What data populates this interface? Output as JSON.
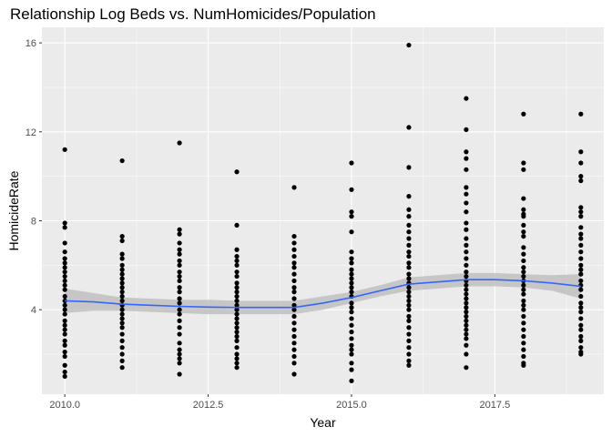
{
  "chart_data": {
    "type": "scatter",
    "title": "Relationship Log Beds vs. NumHomicides/Population",
    "xlabel": "Year",
    "ylabel": "HomicideRate",
    "xlim": [
      2009.6,
      2019.4
    ],
    "ylim": [
      0.2,
      16.7
    ],
    "x_ticks": [
      2010.0,
      2012.5,
      2015.0,
      2017.5
    ],
    "x_tick_labels": [
      "2010.0",
      "2012.5",
      "2015.0",
      "2017.5"
    ],
    "y_ticks": [
      4,
      8,
      12,
      16
    ],
    "y_tick_labels": [
      "4",
      "8",
      "12",
      "16"
    ],
    "grid": true,
    "legend": "none",
    "colors": {
      "panel": "#ebebeb",
      "grid_major": "#ffffff",
      "points": "#000000",
      "smooth_line": "#3366ff",
      "confidence_band": "#bdbdbd"
    },
    "series": [
      {
        "type": "scatter",
        "points_by_year": [
          {
            "x": 2010,
            "y": [
              11.2,
              7.9,
              7.7,
              7.0,
              6.6,
              6.3,
              6.1,
              5.9,
              5.7,
              5.5,
              5.3,
              5.1,
              4.9,
              4.6,
              4.4,
              4.2,
              4.0,
              3.8,
              3.5,
              3.3,
              3.1,
              2.9,
              2.6,
              2.4,
              2.1,
              1.9,
              1.5,
              1.2,
              1.0
            ]
          },
          {
            "x": 2011,
            "y": [
              10.7,
              7.3,
              7.1,
              6.5,
              6.3,
              6.0,
              5.8,
              5.6,
              5.4,
              5.2,
              5.0,
              4.8,
              4.6,
              4.4,
              4.2,
              4.0,
              3.8,
              3.6,
              3.4,
              3.2,
              2.9,
              2.6,
              2.3,
              2.0,
              1.7,
              1.4
            ]
          },
          {
            "x": 2012,
            "y": [
              11.5,
              7.6,
              7.4,
              7.0,
              6.7,
              6.5,
              6.2,
              6.0,
              5.7,
              5.5,
              5.3,
              5.0,
              4.8,
              4.5,
              4.3,
              4.0,
              3.8,
              3.5,
              3.2,
              2.9,
              2.5,
              2.2,
              2.0,
              1.8,
              1.6,
              1.1
            ]
          },
          {
            "x": 2013,
            "y": [
              10.2,
              7.8,
              6.7,
              6.4,
              6.2,
              6.0,
              5.7,
              5.5,
              5.2,
              5.0,
              4.8,
              4.6,
              4.4,
              4.2,
              4.0,
              3.8,
              3.6,
              3.4,
              3.2,
              3.0,
              2.8,
              2.6,
              2.3,
              2.0,
              1.8,
              1.6,
              1.4
            ]
          },
          {
            "x": 2014,
            "y": [
              9.5,
              7.3,
              7.0,
              6.7,
              6.4,
              6.1,
              5.9,
              5.6,
              5.3,
              5.0,
              4.8,
              4.5,
              4.2,
              4.0,
              3.7,
              3.4,
              3.1,
              2.8,
              2.5,
              2.2,
              1.9,
              1.6,
              1.1
            ]
          },
          {
            "x": 2015,
            "y": [
              10.6,
              9.4,
              8.4,
              8.2,
              7.5,
              6.6,
              6.3,
              6.1,
              5.8,
              5.6,
              5.4,
              5.2,
              5.0,
              4.8,
              4.6,
              4.3,
              4.1,
              3.9,
              3.6,
              3.3,
              3.0,
              2.7,
              2.4,
              2.2,
              2.0,
              1.6,
              1.3,
              0.8
            ]
          },
          {
            "x": 2016,
            "y": [
              15.9,
              12.2,
              10.4,
              9.1,
              8.5,
              8.2,
              7.8,
              7.5,
              7.2,
              6.9,
              6.6,
              6.4,
              6.1,
              5.9,
              5.6,
              5.4,
              5.2,
              5.0,
              4.8,
              4.6,
              4.4,
              4.2,
              4.0,
              3.7,
              3.5,
              3.2,
              2.9,
              2.6,
              2.3,
              2.0,
              1.7,
              1.5
            ]
          },
          {
            "x": 2017,
            "y": [
              13.5,
              12.1,
              11.1,
              10.8,
              10.3,
              9.5,
              9.2,
              8.8,
              8.4,
              7.9,
              7.6,
              7.2,
              6.9,
              6.6,
              6.3,
              6.0,
              5.7,
              5.5,
              5.3,
              5.1,
              4.9,
              4.7,
              4.5,
              4.3,
              4.1,
              3.9,
              3.7,
              3.5,
              3.3,
              3.1,
              2.9,
              2.7,
              2.4,
              2.0,
              1.4
            ]
          },
          {
            "x": 2018,
            "y": [
              12.8,
              10.6,
              10.3,
              9.0,
              8.5,
              8.3,
              8.2,
              7.8,
              7.5,
              7.3,
              6.8,
              6.5,
              6.2,
              5.9,
              5.7,
              5.5,
              5.3,
              5.1,
              4.9,
              4.7,
              4.4,
              4.2,
              4.0,
              3.7,
              3.4,
              3.1,
              2.8,
              2.5,
              2.2,
              1.9,
              1.6,
              1.5
            ]
          },
          {
            "x": 2019,
            "y": [
              12.8,
              11.1,
              10.6,
              10.0,
              9.8,
              8.6,
              8.4,
              8.2,
              7.7,
              7.4,
              7.2,
              6.9,
              6.6,
              6.3,
              6.0,
              5.8,
              5.6,
              5.3,
              5.1,
              4.9,
              4.6,
              4.3,
              4.1,
              3.9,
              3.6,
              3.3,
              3.1,
              2.8,
              2.6,
              2.3,
              2.1,
              2.0
            ]
          }
        ]
      },
      {
        "type": "line",
        "x": [
          2010.0,
          2010.5,
          2011.0,
          2011.5,
          2012.0,
          2012.5,
          2013.0,
          2013.5,
          2014.0,
          2014.5,
          2015.0,
          2015.5,
          2016.0,
          2016.5,
          2017.0,
          2017.5,
          2018.0,
          2018.5,
          2019.0
        ],
        "y": [
          4.4,
          4.35,
          4.25,
          4.2,
          4.15,
          4.12,
          4.1,
          4.1,
          4.1,
          4.3,
          4.55,
          4.85,
          5.15,
          5.25,
          5.35,
          5.35,
          5.3,
          5.2,
          5.05
        ],
        "ci_lower": [
          3.85,
          3.95,
          3.95,
          3.9,
          3.85,
          3.8,
          3.8,
          3.8,
          3.8,
          4.0,
          4.3,
          4.6,
          4.85,
          4.95,
          5.05,
          5.05,
          5.0,
          4.85,
          4.5
        ],
        "ci_upper": [
          4.95,
          4.75,
          4.55,
          4.5,
          4.45,
          4.45,
          4.4,
          4.4,
          4.4,
          4.6,
          4.8,
          5.1,
          5.45,
          5.55,
          5.65,
          5.65,
          5.6,
          5.55,
          5.6
        ]
      }
    ]
  }
}
